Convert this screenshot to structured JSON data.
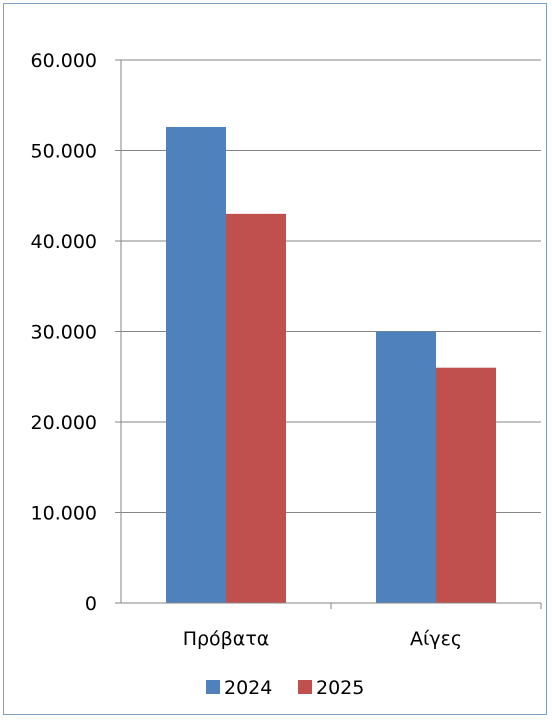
{
  "chart_data": {
    "type": "bar",
    "categories": [
      "Πρόβατα",
      "Αίγες"
    ],
    "series": [
      {
        "name": "2024",
        "values": [
          52600,
          30000
        ],
        "color": "#4f81bd"
      },
      {
        "name": "2025",
        "values": [
          43000,
          26000
        ],
        "color": "#c0504d"
      }
    ],
    "ylim": [
      0,
      60000
    ],
    "yticks": [
      0,
      10000,
      20000,
      30000,
      40000,
      50000,
      60000
    ],
    "ytick_labels": [
      "0",
      "10.000",
      "20.000",
      "30.000",
      "40.000",
      "50.000",
      "60.000"
    ],
    "grid": true,
    "legend_position": "bottom",
    "title": "",
    "xlabel": "",
    "ylabel": ""
  }
}
